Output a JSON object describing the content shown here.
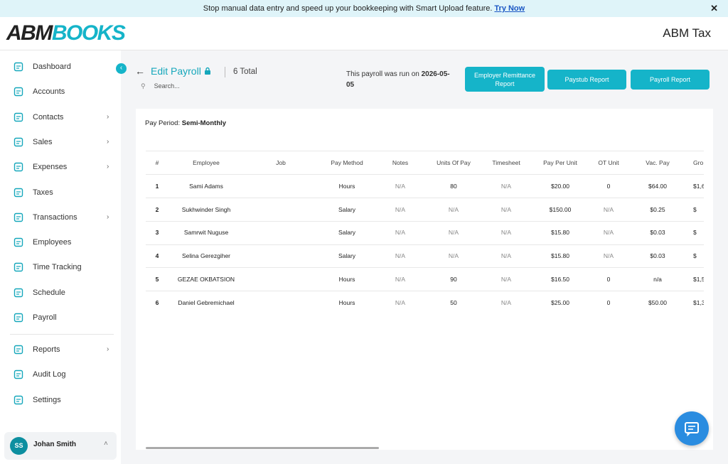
{
  "banner": {
    "text": "Stop manual data entry and speed up your bookkeeping with Smart Upload feature.",
    "link": "Try Now"
  },
  "header": {
    "logo_left": "ABM",
    "logo_right": "BOOKS",
    "company": "ABM Tax"
  },
  "sidebar": {
    "items": [
      {
        "label": "Dashboard",
        "has_submenu": false
      },
      {
        "label": "Accounts",
        "has_submenu": false
      },
      {
        "label": "Contacts",
        "has_submenu": true
      },
      {
        "label": "Sales",
        "has_submenu": true
      },
      {
        "label": "Expenses",
        "has_submenu": true
      },
      {
        "label": "Taxes",
        "has_submenu": false
      },
      {
        "label": "Transactions",
        "has_submenu": true
      },
      {
        "label": "Employees",
        "has_submenu": false
      },
      {
        "label": "Time Tracking",
        "has_submenu": false
      },
      {
        "label": "Schedule",
        "has_submenu": false
      },
      {
        "label": "Payroll",
        "has_submenu": false
      }
    ],
    "secondary": [
      {
        "label": "Reports",
        "has_submenu": true
      },
      {
        "label": "Audit Log",
        "has_submenu": false
      },
      {
        "label": "Settings",
        "has_submenu": false
      }
    ],
    "user": {
      "initials": "SS",
      "name": "Johan Smith"
    }
  },
  "toolbar": {
    "title": "Edit Payroll",
    "total": "6 Total",
    "search_placeholder": "Search...",
    "run_text": "This payroll was run on",
    "run_date": "2026-05-05",
    "buttons": [
      "Employer Remittance Report",
      "Paystub Report",
      "Payroll Report"
    ]
  },
  "pay_period": {
    "label": "Pay Period:",
    "value": "Semi-Monthly"
  },
  "table": {
    "columns": [
      "#",
      "Employee",
      "Job",
      "Pay Method",
      "Notes",
      "Units Of Pay",
      "Timesheet",
      "Pay Per Unit",
      "OT Unit",
      "Vac. Pay",
      "Gro"
    ],
    "rows": [
      [
        "1",
        "Sami Adams",
        "",
        "Hours",
        "N/A",
        "80",
        "N/A",
        "$20.00",
        "0",
        "$64.00",
        "$1,6"
      ],
      [
        "2",
        "Sukhwinder Singh",
        "",
        "Salary",
        "N/A",
        "N/A",
        "N/A",
        "$150.00",
        "N/A",
        "$0.25",
        "$"
      ],
      [
        "3",
        "Samrwit Nuguse",
        "",
        "Salary",
        "N/A",
        "N/A",
        "N/A",
        "$15.80",
        "N/A",
        "$0.03",
        "$"
      ],
      [
        "4",
        "Selina Gerezgiher",
        "",
        "Salary",
        "N/A",
        "N/A",
        "N/A",
        "$15.80",
        "N/A",
        "$0.03",
        "$"
      ],
      [
        "5",
        "GEZAE OKBATSION",
        "",
        "Hours",
        "N/A",
        "90",
        "N/A",
        "$16.50",
        "0",
        "n/a",
        "$1,5"
      ],
      [
        "6",
        "Daniel Gebremichael",
        "",
        "Hours",
        "N/A",
        "50",
        "N/A",
        "$25.00",
        "0",
        "$50.00",
        "$1,3"
      ]
    ]
  }
}
